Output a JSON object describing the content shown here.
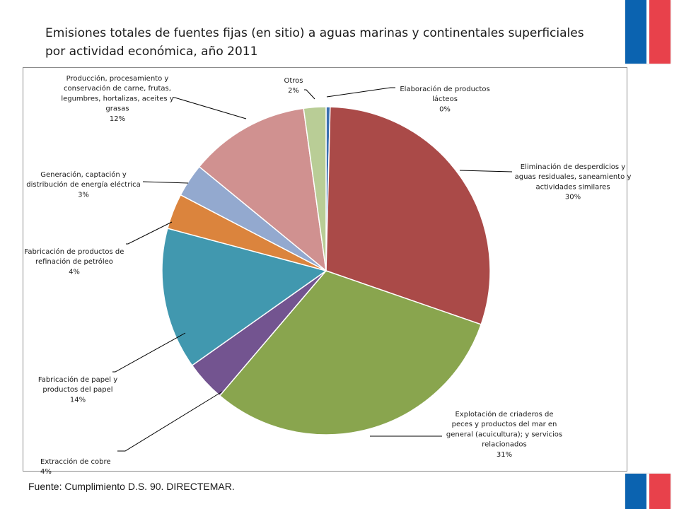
{
  "title": "Emisiones totales de fuentes fijas (en sitio) a aguas marinas y continentales superficiales por actividad económica, año 2011",
  "source": "Fuente: Cumplimiento D.S. 90. DIRECTEMAR.",
  "chart_data": {
    "type": "pie",
    "title": "",
    "slices": [
      {
        "name": "Elaboración de productos lácteos",
        "pct_label": "0%",
        "value": 0.4,
        "color": "#3a6fb0"
      },
      {
        "name": "Eliminación de desperdicios y aguas residuales, saneamiento y actividades similares",
        "pct_label": "30%",
        "value": 30,
        "color": "#aa4a48"
      },
      {
        "name": "Explotación de criaderos de peces y productos del mar en general (acuicultura); y servicios relacionados",
        "pct_label": "31%",
        "value": 31,
        "color": "#89a54e"
      },
      {
        "name": "Extracción de cobre",
        "pct_label": "4%",
        "value": 4,
        "color": "#735490"
      },
      {
        "name": "Fabricación de papel y productos del papel",
        "pct_label": "14%",
        "value": 14,
        "color": "#4198af"
      },
      {
        "name": "Fabricación de productos de refinación de petróleo",
        "pct_label": "4%",
        "value": 3.5,
        "color": "#db843d"
      },
      {
        "name": "Generación, captación y distribución de energía eléctrica",
        "pct_label": "3%",
        "value": 3.3,
        "color": "#93a9cf"
      },
      {
        "name": "Producción, procesamiento y conservación de carne, frutas, legumbres, hortalizas, aceites y grasas",
        "pct_label": "12%",
        "value": 11.9,
        "color": "#d09190"
      },
      {
        "name": "Otros",
        "pct_label": "2%",
        "value": 2.2,
        "color": "#b9cd96"
      }
    ],
    "data_labels": [
      {
        "lines": [
          "Elaboración de productos",
          "lácteos",
          "0%"
        ]
      },
      {
        "lines": [
          "Eliminación de desperdicios y",
          "aguas residuales, saneamiento y",
          "actividades similares",
          "30%"
        ]
      },
      {
        "lines": [
          "Explotación de criaderos de",
          "peces y productos del mar en",
          "general (acuicultura); y servicios",
          "relacionados",
          "31%"
        ]
      },
      {
        "lines": [
          "Extracción de cobre",
          "4%"
        ]
      },
      {
        "lines": [
          "Fabricación de papel y",
          "productos del papel",
          "14%"
        ]
      },
      {
        "lines": [
          "Fabricación de productos de",
          "refinación de petróleo",
          "4%"
        ]
      },
      {
        "lines": [
          "Generación, captación y",
          "distribución de energía eléctrica",
          "3%"
        ]
      },
      {
        "lines": [
          "Producción, procesamiento y",
          "conservación de carne, frutas,",
          "legumbres, hortalizas, aceites y",
          "grasas",
          "12%"
        ]
      },
      {
        "lines": [
          "Otros",
          "2%"
        ]
      }
    ],
    "legend": "none",
    "grid": false
  }
}
